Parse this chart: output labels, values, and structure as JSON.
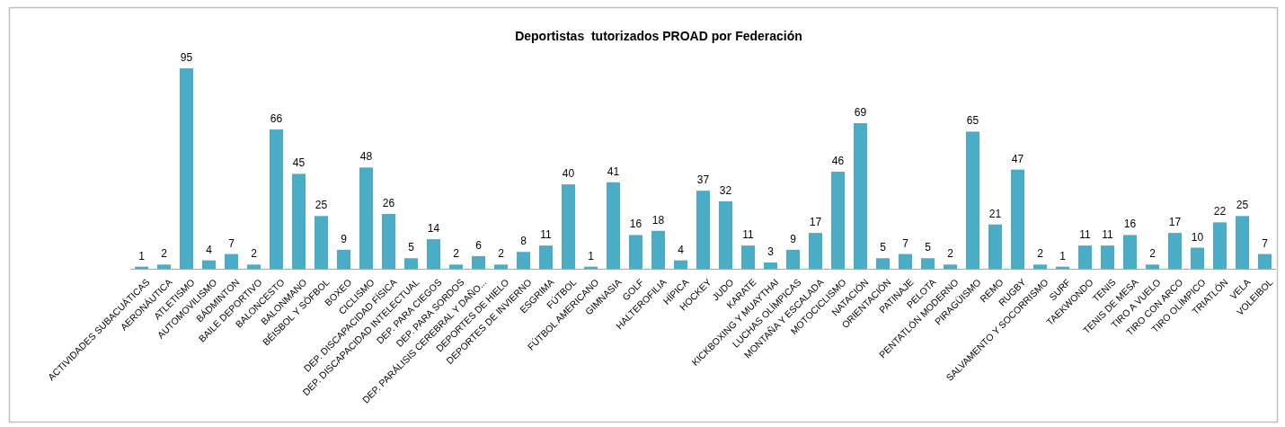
{
  "chart_data": {
    "type": "bar",
    "title": "Deportistas  tutorizados PROAD por Federación",
    "categories": [
      "ACTIVIDADES SUBACUÁTICAS",
      "AERONÁUTICA",
      "ATLETISMO",
      "AUTOMOVILISMO",
      "BÁDMINTON",
      "BAILE DEPORTIVO",
      "BALONCESTO",
      "BALONMANO",
      "BÉISBOL Y SÓFBOL",
      "BOXEO",
      "CICLISMO",
      "DEP. DISCAPACIDAD FÍSICA",
      "DEP. DISCAPACIDAD INTELECTUAL",
      "DEP. PARA CIEGOS",
      "DEP. PARA SORDOS",
      "DEP. PARÁLISIS CEREBRAL Y DAÑO...",
      "DEPORTES DE HIELO",
      "DEPORTES DE INVIERNO",
      "ESGRIMA",
      "FÚTBOL",
      "FÚTBOL AMERICANO",
      "GIMNASIA",
      "GOLF",
      "HALTEROFILIA",
      "HÍPICA",
      "HOCKEY",
      "JUDO",
      "KARATE",
      "KICKBOXING Y MUAYTHAI",
      "LUCHAS OLÍMPICAS",
      "MONTAÑA Y ESCALADA",
      "MOTOCICLISMO",
      "NATACIÓN",
      "ORIENTACIÓN",
      "PATINAJE",
      "PELOTA",
      "PENTATLÓN MODERNO",
      "PIRAGÜISMO",
      "REMO",
      "RUGBY",
      "SALVAMENTO Y SOCORRISMO",
      "SURF",
      "TAEKWONDO",
      "TENIS",
      "TENIS DE MESA",
      "TIRO A VUELO",
      "TIRO CON ARCO",
      "TIRO OLÍMPICO",
      "TRIATLÓN",
      "VELA",
      "VOLEIBOL"
    ],
    "values": [
      1,
      2,
      95,
      4,
      7,
      2,
      66,
      45,
      25,
      9,
      48,
      26,
      5,
      14,
      2,
      6,
      2,
      8,
      11,
      40,
      1,
      41,
      16,
      18,
      4,
      37,
      32,
      11,
      3,
      9,
      17,
      46,
      69,
      5,
      7,
      5,
      2,
      65,
      21,
      47,
      2,
      1,
      11,
      11,
      16,
      2,
      17,
      10,
      22,
      25,
      7
    ],
    "color": "#4bacc6",
    "data_labels": true,
    "tick_labels": "x"
  }
}
